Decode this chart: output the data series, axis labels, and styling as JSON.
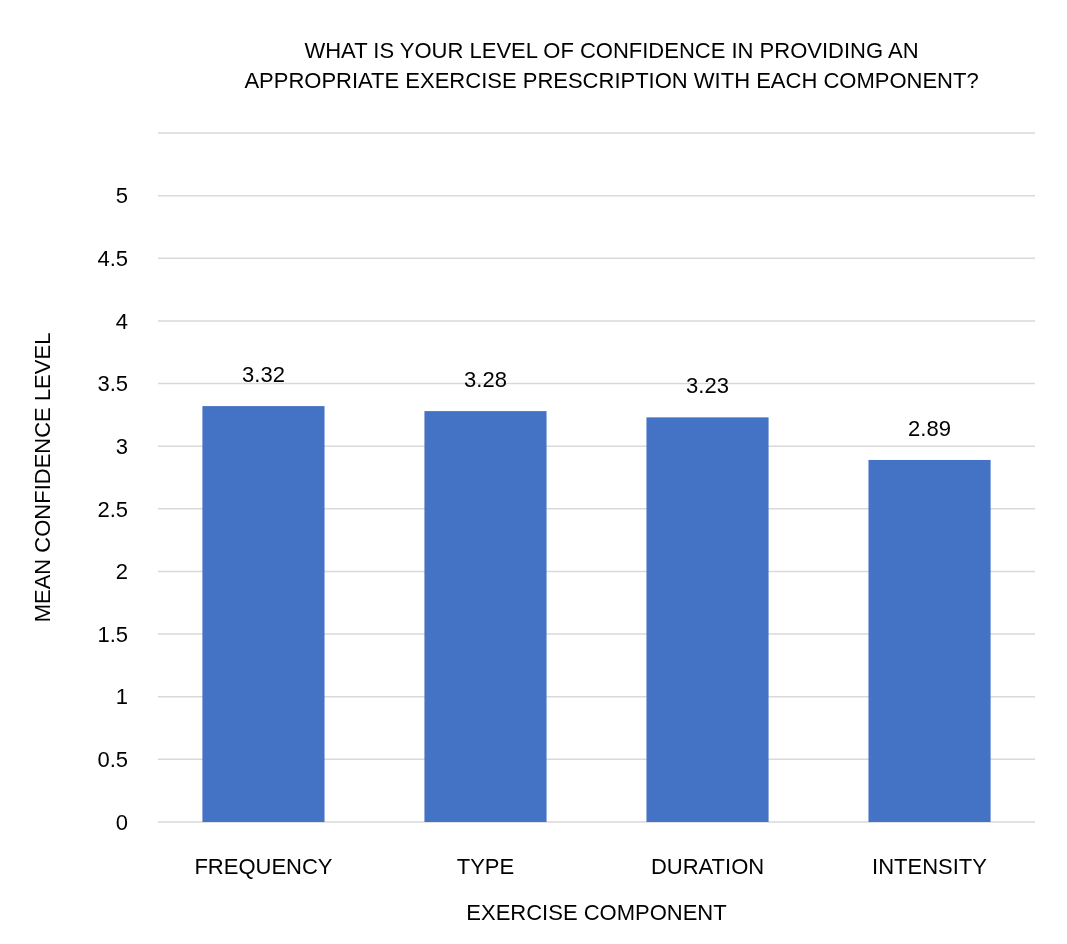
{
  "chart_data": {
    "type": "bar",
    "title": "WHAT IS YOUR LEVEL OF CONFIDENCE IN PROVIDING AN\nAPPROPRIATE EXERCISE PRESCRIPTION WITH EACH COMPONENT?",
    "xlabel": "EXERCISE COMPONENT",
    "ylabel": "MEAN CONFIDENCE LEVEL",
    "categories": [
      "FREQUENCY",
      "TYPE",
      "DURATION",
      "INTENSITY"
    ],
    "values": [
      3.32,
      3.28,
      3.23,
      2.89
    ],
    "color": "#4472c4",
    "ylim": [
      0,
      5.5
    ],
    "yticks": [
      0,
      0.5,
      1,
      1.5,
      2,
      2.5,
      3,
      3.5,
      4,
      4.5,
      5,
      {
        "value": 5.5,
        "label": null
      }
    ],
    "grid": "y",
    "data_labels": true
  }
}
